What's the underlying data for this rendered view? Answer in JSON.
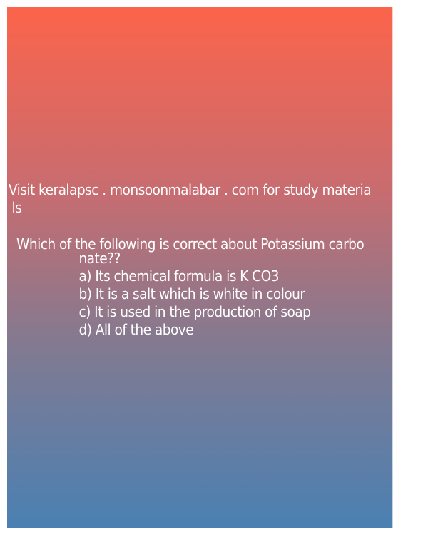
{
  "banner": {
    "line1": "Visit keralapsc . monsoonmalabar . com for study materia",
    "line2": "ls"
  },
  "question": {
    "line1": "Which of the following is correct about Potassium carbo",
    "line2": "nate??"
  },
  "options": [
    "a) Its chemical formula is K CO3",
    "b) It is a salt which is white in colour",
    "c) It is used in the production of soap",
    "d) All of the above"
  ],
  "colors": {
    "gradient_top": "#fc644b",
    "gradient_bottom": "#4a80b2",
    "text": "#ffffff"
  }
}
